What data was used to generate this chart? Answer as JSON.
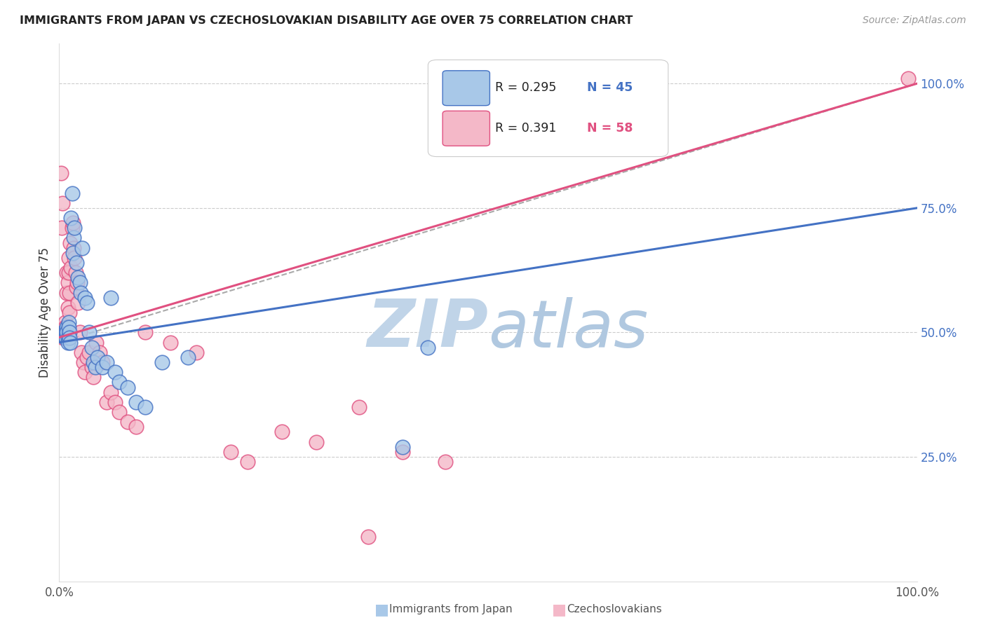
{
  "title": "IMMIGRANTS FROM JAPAN VS CZECHOSLOVAKIAN DISABILITY AGE OVER 75 CORRELATION CHART",
  "source": "Source: ZipAtlas.com",
  "ylabel": "Disability Age Over 75",
  "legend_blue_R": "R = 0.295",
  "legend_blue_N": "N = 45",
  "legend_pink_R": "R = 0.391",
  "legend_pink_N": "N = 58",
  "blue_color": "#a8c8e8",
  "pink_color": "#f4b8c8",
  "trend_blue_color": "#4472c4",
  "trend_pink_color": "#e05080",
  "trend_dashed_color": "#aaaaaa",
  "watermark_zip_color": "#c8d8e8",
  "watermark_atlas_color": "#b0c8e0",
  "ytick_labels": [
    "25.0%",
    "50.0%",
    "75.0%",
    "100.0%"
  ],
  "ytick_values": [
    0.25,
    0.5,
    0.75,
    1.0
  ],
  "blue_trend": [
    0.0,
    1.0,
    0.48,
    0.75
  ],
  "pink_trend": [
    0.0,
    1.0,
    0.49,
    1.0
  ],
  "dashed_trend": [
    0.0,
    1.0,
    0.48,
    1.0
  ],
  "blue_x": [
    0.005,
    0.006,
    0.007,
    0.007,
    0.008,
    0.008,
    0.009,
    0.009,
    0.01,
    0.01,
    0.011,
    0.011,
    0.012,
    0.012,
    0.013,
    0.014,
    0.015,
    0.016,
    0.017,
    0.018,
    0.02,
    0.022,
    0.024,
    0.025,
    0.027,
    0.03,
    0.032,
    0.035,
    0.038,
    0.04,
    0.042,
    0.045,
    0.05,
    0.055,
    0.06,
    0.065,
    0.07,
    0.08,
    0.09,
    0.1,
    0.12,
    0.15,
    0.4,
    0.43,
    0.52
  ],
  "blue_y": [
    0.5,
    0.5,
    0.5,
    0.49,
    0.5,
    0.49,
    0.51,
    0.5,
    0.49,
    0.48,
    0.52,
    0.51,
    0.5,
    0.49,
    0.48,
    0.73,
    0.78,
    0.66,
    0.69,
    0.71,
    0.64,
    0.61,
    0.6,
    0.58,
    0.67,
    0.57,
    0.56,
    0.5,
    0.47,
    0.44,
    0.43,
    0.45,
    0.43,
    0.44,
    0.57,
    0.42,
    0.4,
    0.39,
    0.36,
    0.35,
    0.44,
    0.45,
    0.27,
    0.47,
    0.99
  ],
  "pink_x": [
    0.002,
    0.003,
    0.004,
    0.005,
    0.005,
    0.006,
    0.006,
    0.007,
    0.007,
    0.008,
    0.008,
    0.009,
    0.009,
    0.01,
    0.01,
    0.011,
    0.011,
    0.012,
    0.012,
    0.013,
    0.014,
    0.015,
    0.016,
    0.017,
    0.018,
    0.019,
    0.02,
    0.021,
    0.022,
    0.024,
    0.026,
    0.028,
    0.03,
    0.032,
    0.035,
    0.038,
    0.04,
    0.043,
    0.047,
    0.05,
    0.055,
    0.06,
    0.065,
    0.07,
    0.08,
    0.09,
    0.1,
    0.13,
    0.16,
    0.2,
    0.22,
    0.26,
    0.3,
    0.35,
    0.4,
    0.45,
    0.36,
    0.99
  ],
  "pink_y": [
    0.82,
    0.71,
    0.76,
    0.5,
    0.49,
    0.51,
    0.5,
    0.52,
    0.51,
    0.5,
    0.49,
    0.62,
    0.58,
    0.6,
    0.55,
    0.65,
    0.62,
    0.58,
    0.54,
    0.68,
    0.63,
    0.71,
    0.72,
    0.67,
    0.65,
    0.62,
    0.59,
    0.6,
    0.56,
    0.5,
    0.46,
    0.44,
    0.42,
    0.45,
    0.46,
    0.43,
    0.41,
    0.48,
    0.46,
    0.44,
    0.36,
    0.38,
    0.36,
    0.34,
    0.32,
    0.31,
    0.5,
    0.48,
    0.46,
    0.26,
    0.24,
    0.3,
    0.28,
    0.35,
    0.26,
    0.24,
    0.09,
    1.01
  ]
}
